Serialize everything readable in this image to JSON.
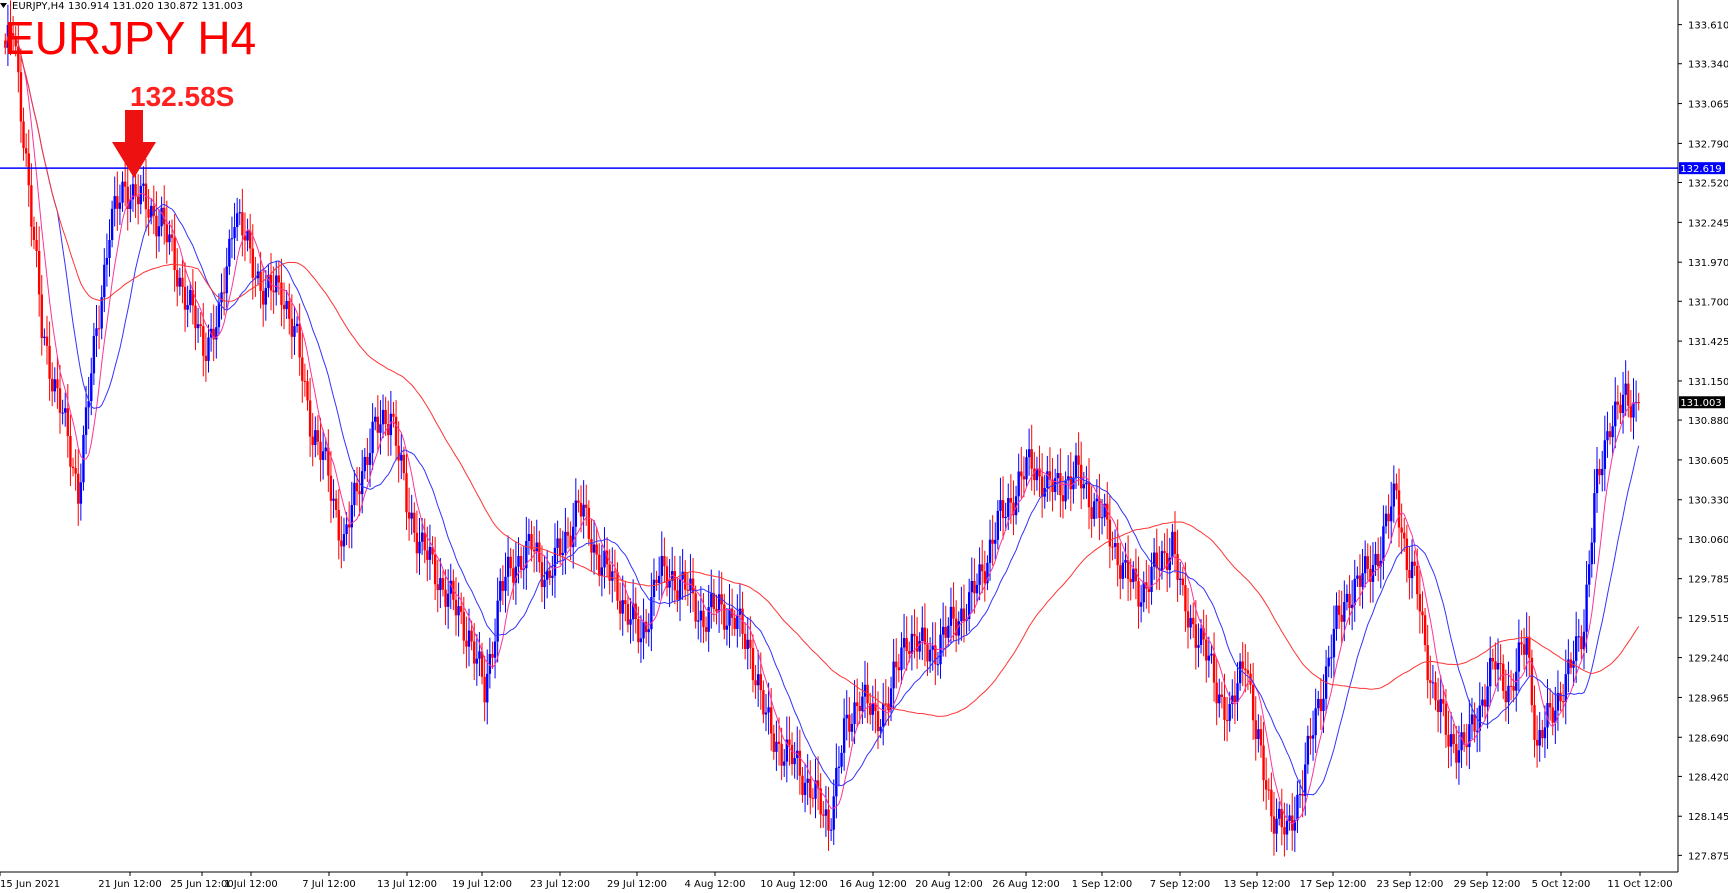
{
  "header": {
    "symbol_tf": "EURJPY,H4",
    "ohlc": "130.914 131.020 130.872 131.003"
  },
  "annotation": {
    "title": "EURJPY H4",
    "level_label": "132.58S"
  },
  "colors": {
    "bull": "#0000ff",
    "bear": "#ff0000",
    "ma_fast": "#ff3399",
    "ma_mid": "#3333ff",
    "ma_slow": "#ff3333",
    "hline": "#0000ff",
    "arrow": "#ee1111"
  },
  "chart_data": {
    "type": "candlestick",
    "ylim": [
      127.76,
      133.78
    ],
    "y_ticks": [
      "133.610",
      "133.340",
      "133.065",
      "132.790",
      "132.520",
      "132.245",
      "131.970",
      "131.700",
      "131.425",
      "131.150",
      "130.880",
      "130.605",
      "130.330",
      "130.060",
      "129.785",
      "129.515",
      "129.240",
      "128.965",
      "128.690",
      "128.420",
      "128.145",
      "127.875"
    ],
    "x_ticks": [
      "15 Jun 2021",
      "21 Jun 12:00",
      "25 Jun 12:00",
      "1 Jul 12:00",
      "7 Jul 12:00",
      "13 Jul 12:00",
      "19 Jul 12:00",
      "23 Jul 12:00",
      "29 Jul 12:00",
      "4 Aug 12:00",
      "10 Aug 12:00",
      "16 Aug 12:00",
      "20 Aug 12:00",
      "26 Aug 12:00",
      "1 Sep 12:00",
      "7 Sep 12:00",
      "13 Sep 12:00",
      "17 Sep 12:00",
      "23 Sep 12:00",
      "29 Sep 12:00",
      "5 Oct 12:00",
      "11 Oct 12:00"
    ],
    "horizontal_line": {
      "value": 132.619,
      "label": "132.619"
    },
    "current_price": {
      "value": 131.003,
      "label": "131.003"
    },
    "anchors": [
      [
        0,
        133.45
      ],
      [
        3,
        133.55
      ],
      [
        8,
        132.7
      ],
      [
        14,
        131.5
      ],
      [
        22,
        130.9
      ],
      [
        28,
        130.4
      ],
      [
        35,
        131.5
      ],
      [
        40,
        132.2
      ],
      [
        46,
        132.5
      ],
      [
        52,
        132.4
      ],
      [
        60,
        132.25
      ],
      [
        68,
        131.8
      ],
      [
        76,
        131.4
      ],
      [
        82,
        131.55
      ],
      [
        88,
        132.35
      ],
      [
        94,
        132.0
      ],
      [
        100,
        131.75
      ],
      [
        106,
        131.8
      ],
      [
        112,
        131.4
      ],
      [
        118,
        130.8
      ],
      [
        124,
        130.5
      ],
      [
        130,
        130.0
      ],
      [
        136,
        130.5
      ],
      [
        142,
        130.8
      ],
      [
        148,
        130.95
      ],
      [
        154,
        130.3
      ],
      [
        160,
        130.0
      ],
      [
        166,
        129.8
      ],
      [
        172,
        129.6
      ],
      [
        178,
        129.4
      ],
      [
        184,
        129.0
      ],
      [
        190,
        129.7
      ],
      [
        196,
        129.9
      ],
      [
        202,
        130.0
      ],
      [
        208,
        129.8
      ],
      [
        214,
        130.0
      ],
      [
        220,
        130.3
      ],
      [
        226,
        130.0
      ],
      [
        232,
        129.8
      ],
      [
        238,
        129.6
      ],
      [
        244,
        129.35
      ],
      [
        250,
        129.8
      ],
      [
        256,
        129.8
      ],
      [
        262,
        129.7
      ],
      [
        268,
        129.5
      ],
      [
        274,
        129.6
      ],
      [
        280,
        129.5
      ],
      [
        286,
        129.3
      ],
      [
        292,
        128.8
      ],
      [
        298,
        128.6
      ],
      [
        304,
        128.5
      ],
      [
        310,
        128.3
      ],
      [
        316,
        128.1
      ],
      [
        322,
        128.7
      ],
      [
        328,
        129.0
      ],
      [
        334,
        128.8
      ],
      [
        340,
        129.0
      ],
      [
        346,
        129.4
      ],
      [
        352,
        129.3
      ],
      [
        358,
        129.3
      ],
      [
        364,
        129.5
      ],
      [
        370,
        129.6
      ],
      [
        376,
        129.9
      ],
      [
        382,
        130.2
      ],
      [
        388,
        130.4
      ],
      [
        394,
        130.6
      ],
      [
        400,
        130.4
      ],
      [
        406,
        130.45
      ],
      [
        412,
        130.5
      ],
      [
        418,
        130.3
      ],
      [
        424,
        130.1
      ],
      [
        430,
        129.8
      ],
      [
        436,
        129.7
      ],
      [
        442,
        129.85
      ],
      [
        448,
        130.05
      ],
      [
        452,
        129.6
      ],
      [
        458,
        129.4
      ],
      [
        464,
        129.1
      ],
      [
        470,
        128.8
      ],
      [
        476,
        129.3
      ],
      [
        480,
        128.7
      ],
      [
        486,
        128.2
      ],
      [
        492,
        128.0
      ],
      [
        498,
        128.4
      ],
      [
        504,
        128.9
      ],
      [
        510,
        129.4
      ],
      [
        516,
        129.7
      ],
      [
        522,
        129.8
      ],
      [
        528,
        130.0
      ],
      [
        534,
        130.4
      ],
      [
        538,
        129.9
      ],
      [
        542,
        129.7
      ],
      [
        548,
        129.0
      ],
      [
        554,
        128.7
      ],
      [
        560,
        128.6
      ],
      [
        566,
        128.9
      ],
      [
        572,
        129.2
      ],
      [
        578,
        129.0
      ],
      [
        584,
        129.4
      ],
      [
        588,
        128.6
      ],
      [
        594,
        128.9
      ],
      [
        600,
        129.1
      ],
      [
        606,
        129.5
      ],
      [
        610,
        130.3
      ],
      [
        616,
        130.9
      ],
      [
        622,
        131.0
      ],
      [
        627,
        131.0
      ]
    ]
  }
}
